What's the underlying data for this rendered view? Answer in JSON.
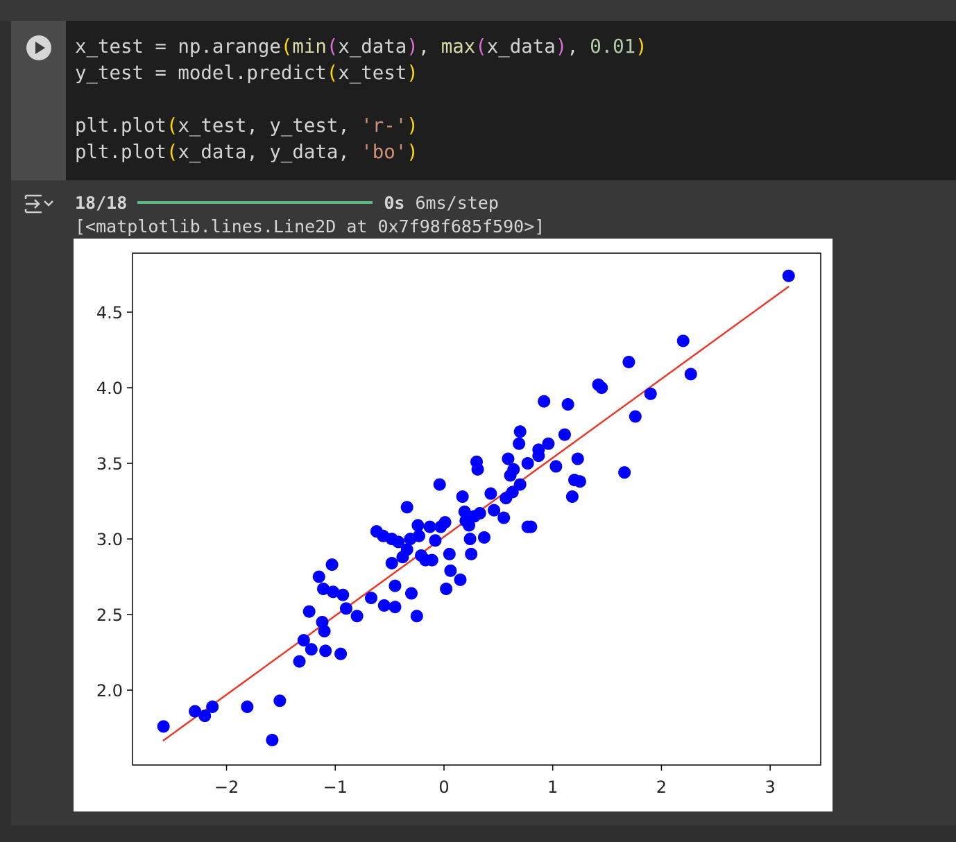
{
  "code": {
    "lines": [
      [
        {
          "text": "x_test = np.arange",
          "color": "#d4d4d4"
        },
        {
          "text": "(",
          "color": "#ffd700"
        },
        {
          "text": "min",
          "color": "#dcdcaa"
        },
        {
          "text": "(",
          "color": "#da70d6"
        },
        {
          "text": "x_data",
          "color": "#d4d4d4"
        },
        {
          "text": ")",
          "color": "#da70d6"
        },
        {
          "text": ", ",
          "color": "#d4d4d4"
        },
        {
          "text": "max",
          "color": "#dcdcaa"
        },
        {
          "text": "(",
          "color": "#da70d6"
        },
        {
          "text": "x_data",
          "color": "#d4d4d4"
        },
        {
          "text": ")",
          "color": "#da70d6"
        },
        {
          "text": ", ",
          "color": "#d4d4d4"
        },
        {
          "text": "0.01",
          "color": "#b5cea8"
        },
        {
          "text": ")",
          "color": "#ffd700"
        }
      ],
      [
        {
          "text": "y_test = model.predict",
          "color": "#d4d4d4"
        },
        {
          "text": "(",
          "color": "#ffd700"
        },
        {
          "text": "x_test",
          "color": "#d4d4d4"
        },
        {
          "text": ")",
          "color": "#ffd700"
        }
      ],
      [],
      [
        {
          "text": "plt.plot",
          "color": "#d4d4d4"
        },
        {
          "text": "(",
          "color": "#ffd700"
        },
        {
          "text": "x_test, y_test, ",
          "color": "#d4d4d4"
        },
        {
          "text": "'r-'",
          "color": "#ce9178"
        },
        {
          "text": ")",
          "color": "#ffd700"
        }
      ],
      [
        {
          "text": "plt.plot",
          "color": "#d4d4d4"
        },
        {
          "text": "(",
          "color": "#ffd700"
        },
        {
          "text": "x_data, y_data, ",
          "color": "#d4d4d4"
        },
        {
          "text": "'bo'",
          "color": "#ce9178"
        },
        {
          "text": ")",
          "color": "#ffd700"
        }
      ]
    ]
  },
  "output": {
    "progress": {
      "count": "18/18",
      "time": "0s",
      "rate": "6ms/step"
    },
    "result": "[<matplotlib.lines.Line2D at 0x7f98f685f590>]"
  },
  "chart_data": {
    "type": "scatter",
    "xlim": [
      -2.865,
      3.465
    ],
    "ylim": [
      1.505,
      4.89
    ],
    "xticks": [
      {
        "value": -2,
        "label": "−2"
      },
      {
        "value": -1,
        "label": "−1"
      },
      0,
      1,
      2,
      3
    ],
    "yticks": [
      {
        "value": 2.0,
        "label": "2.0"
      },
      2.5,
      {
        "value": 3.0,
        "label": "3.0"
      },
      3.5,
      {
        "value": 4.0,
        "label": "4.0"
      },
      4.5
    ],
    "series": [
      {
        "type": "line",
        "color": "#e8392b",
        "x": [
          -2.585,
          3.172
        ],
        "values": [
          1.665,
          4.67
        ]
      },
      {
        "type": "scatter",
        "color": "#0000ff",
        "x": [
          -2.58,
          -2.29,
          -2.2,
          -2.13,
          -1.81,
          -1.58,
          -1.51,
          -1.33,
          -1.29,
          -1.22,
          -1.24,
          -1.15,
          -1.12,
          -1.1,
          -1.11,
          -1.09,
          -1.03,
          -1.02,
          -0.95,
          -0.93,
          -0.9,
          -0.8,
          -0.67,
          -0.62,
          -0.56,
          -0.55,
          -0.48,
          -0.48,
          -0.45,
          -0.45,
          -0.42,
          -0.38,
          -0.34,
          -0.34,
          -0.31,
          -0.3,
          -0.25,
          -0.24,
          -0.23,
          -0.21,
          -0.17,
          -0.13,
          -0.11,
          -0.08,
          -0.04,
          -0.03,
          0.01,
          0.02,
          0.05,
          0.06,
          0.15,
          0.17,
          0.19,
          0.2,
          0.23,
          0.24,
          0.25,
          0.28,
          0.3,
          0.31,
          0.33,
          0.37,
          0.43,
          0.46,
          0.55,
          0.57,
          0.59,
          0.61,
          0.63,
          0.64,
          0.69,
          0.7,
          0.7,
          0.77,
          0.77,
          0.8,
          0.87,
          0.87,
          0.92,
          0.96,
          1.03,
          1.11,
          1.14,
          1.18,
          1.2,
          1.23,
          1.25,
          1.42,
          1.45,
          1.66,
          1.7,
          1.76,
          1.9,
          2.2,
          2.27,
          3.17
        ],
        "values": [
          1.76,
          1.86,
          1.83,
          1.89,
          1.89,
          1.67,
          1.93,
          2.19,
          2.33,
          2.27,
          2.52,
          2.75,
          2.45,
          2.39,
          2.67,
          2.26,
          2.83,
          2.65,
          2.24,
          2.63,
          2.54,
          2.49,
          2.61,
          3.05,
          3.02,
          2.56,
          3.0,
          2.84,
          2.69,
          2.55,
          2.98,
          2.88,
          3.21,
          2.93,
          3.0,
          2.64,
          2.49,
          3.09,
          3.02,
          2.89,
          2.86,
          3.08,
          2.86,
          2.99,
          3.36,
          3.08,
          3.11,
          2.67,
          2.9,
          2.79,
          2.73,
          3.28,
          3.18,
          3.12,
          3.09,
          3.0,
          2.9,
          3.15,
          3.51,
          3.46,
          3.17,
          3.01,
          3.3,
          3.19,
          3.14,
          3.27,
          3.53,
          3.42,
          3.31,
          3.46,
          3.63,
          3.71,
          3.36,
          3.5,
          3.08,
          3.08,
          3.55,
          3.59,
          3.91,
          3.63,
          3.48,
          3.69,
          3.89,
          3.28,
          3.39,
          3.53,
          3.38,
          4.02,
          4.0,
          3.44,
          4.17,
          3.81,
          3.96,
          4.31,
          4.09,
          4.74
        ]
      }
    ]
  }
}
